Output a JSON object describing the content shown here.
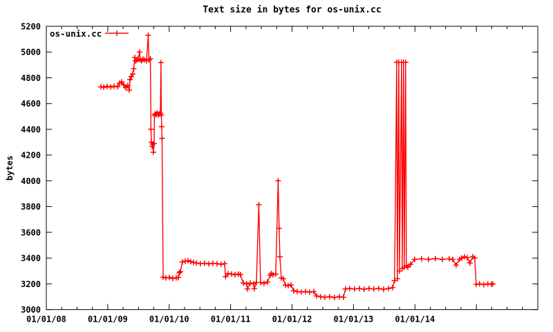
{
  "chart_data": {
    "type": "line",
    "title": "Text size in bytes for os-unix.cc",
    "xlabel": "",
    "ylabel": "bytes",
    "grid": false,
    "legend_position": "top-left-inside",
    "background_color": "#ffffff",
    "axis_color": "#000000",
    "x_axis": {
      "range_years": [
        2008,
        2016
      ],
      "tick_labels": [
        "01/01/08",
        "01/01/09",
        "01/01/10",
        "01/01/11",
        "01/01/12",
        "01/01/13",
        "01/01/14"
      ],
      "minor_ticks_per_year": 4
    },
    "y_axis": {
      "range": [
        3000,
        5200
      ],
      "tick_step": 200,
      "tick_values": [
        3000,
        3200,
        3400,
        3600,
        3800,
        4000,
        4200,
        4400,
        4600,
        4800,
        5000,
        5200
      ]
    },
    "series": [
      {
        "name": "os-unix.cc",
        "color": "#ff0000",
        "marker": "plus",
        "style": "linespoints",
        "points": [
          [
            2008.889,
            4730
          ],
          [
            2008.934,
            4727
          ],
          [
            2008.99,
            4733
          ],
          [
            2009.046,
            4728
          ],
          [
            2009.102,
            4735
          ],
          [
            2009.159,
            4730
          ],
          [
            2009.192,
            4758
          ],
          [
            2009.226,
            4768
          ],
          [
            2009.26,
            4745
          ],
          [
            2009.294,
            4722
          ],
          [
            2009.327,
            4740
          ],
          [
            2009.35,
            4705
          ],
          [
            2009.361,
            4785
          ],
          [
            2009.384,
            4810
          ],
          [
            2009.406,
            4830
          ],
          [
            2009.423,
            4870
          ],
          [
            2009.44,
            4958
          ],
          [
            2009.451,
            4930
          ],
          [
            2009.473,
            4940
          ],
          [
            2009.496,
            4945
          ],
          [
            2009.518,
            5000
          ],
          [
            2009.529,
            4938
          ],
          [
            2009.552,
            4933
          ],
          [
            2009.574,
            4945
          ],
          [
            2009.597,
            4938
          ],
          [
            2009.631,
            4933
          ],
          [
            2009.659,
            5130
          ],
          [
            2009.671,
            4938
          ],
          [
            2009.693,
            4948
          ],
          [
            2009.704,
            4400
          ],
          [
            2009.71,
            4300
          ],
          [
            2009.721,
            4268
          ],
          [
            2009.732,
            4285
          ],
          [
            2009.743,
            4222
          ],
          [
            2009.754,
            4290
          ],
          [
            2009.76,
            4508
          ],
          [
            2009.771,
            4520
          ],
          [
            2009.788,
            4515
          ],
          [
            2009.805,
            4528
          ],
          [
            2009.822,
            4512
          ],
          [
            2009.839,
            4520
          ],
          [
            2009.856,
            4525
          ],
          [
            2009.867,
            4918
          ],
          [
            2009.872,
            4510
          ],
          [
            2009.878,
            4420
          ],
          [
            2009.884,
            4330
          ],
          [
            2009.901,
            3252
          ],
          [
            2009.946,
            3246
          ],
          [
            2010.002,
            3250
          ],
          [
            2010.058,
            3242
          ],
          [
            2010.115,
            3246
          ],
          [
            2010.148,
            3250
          ],
          [
            2010.165,
            3286
          ],
          [
            2010.182,
            3295
          ],
          [
            2010.216,
            3370
          ],
          [
            2010.261,
            3376
          ],
          [
            2010.306,
            3380
          ],
          [
            2010.351,
            3372
          ],
          [
            2010.396,
            3366
          ],
          [
            2010.441,
            3362
          ],
          [
            2010.508,
            3356
          ],
          [
            2010.576,
            3360
          ],
          [
            2010.643,
            3355
          ],
          [
            2010.711,
            3360
          ],
          [
            2010.778,
            3356
          ],
          [
            2010.846,
            3352
          ],
          [
            2010.902,
            3356
          ],
          [
            2010.918,
            3256
          ],
          [
            2010.958,
            3280
          ],
          [
            2011.014,
            3276
          ],
          [
            2011.071,
            3270
          ],
          [
            2011.127,
            3276
          ],
          [
            2011.161,
            3272
          ],
          [
            2011.206,
            3206
          ],
          [
            2011.262,
            3200
          ],
          [
            2011.273,
            3160
          ],
          [
            2011.318,
            3206
          ],
          [
            2011.374,
            3200
          ],
          [
            2011.385,
            3162
          ],
          [
            2011.419,
            3210
          ],
          [
            2011.459,
            3815
          ],
          [
            2011.487,
            3210
          ],
          [
            2011.543,
            3204
          ],
          [
            2011.599,
            3214
          ],
          [
            2011.645,
            3268
          ],
          [
            2011.662,
            3280
          ],
          [
            2011.69,
            3270
          ],
          [
            2011.735,
            3276
          ],
          [
            2011.774,
            4000
          ],
          [
            2011.79,
            3630
          ],
          [
            2011.802,
            3410
          ],
          [
            2011.825,
            3246
          ],
          [
            2011.858,
            3240
          ],
          [
            2011.892,
            3190
          ],
          [
            2011.937,
            3186
          ],
          [
            2011.982,
            3192
          ],
          [
            2012.027,
            3146
          ],
          [
            2012.083,
            3140
          ],
          [
            2012.151,
            3136
          ],
          [
            2012.218,
            3140
          ],
          [
            2012.285,
            3135
          ],
          [
            2012.353,
            3140
          ],
          [
            2012.398,
            3106
          ],
          [
            2012.465,
            3100
          ],
          [
            2012.533,
            3096
          ],
          [
            2012.611,
            3100
          ],
          [
            2012.69,
            3094
          ],
          [
            2012.769,
            3100
          ],
          [
            2012.836,
            3096
          ],
          [
            2012.87,
            3160
          ],
          [
            2012.938,
            3164
          ],
          [
            2013.016,
            3160
          ],
          [
            2013.095,
            3164
          ],
          [
            2013.174,
            3158
          ],
          [
            2013.252,
            3164
          ],
          [
            2013.331,
            3160
          ],
          [
            2013.41,
            3164
          ],
          [
            2013.489,
            3158
          ],
          [
            2013.568,
            3164
          ],
          [
            2013.635,
            3170
          ],
          [
            2013.669,
            3225
          ],
          [
            2013.703,
            4920
          ],
          [
            2013.714,
            3240
          ],
          [
            2013.737,
            4920
          ],
          [
            2013.748,
            3300
          ],
          [
            2013.782,
            4920
          ],
          [
            2013.793,
            3318
          ],
          [
            2013.815,
            4920
          ],
          [
            2013.826,
            3330
          ],
          [
            2013.849,
            4920
          ],
          [
            2013.86,
            3340
          ],
          [
            2013.883,
            3330
          ],
          [
            2013.928,
            3352
          ],
          [
            2013.995,
            3390
          ],
          [
            2014.108,
            3394
          ],
          [
            2014.22,
            3390
          ],
          [
            2014.333,
            3396
          ],
          [
            2014.445,
            3390
          ],
          [
            2014.558,
            3394
          ],
          [
            2014.614,
            3390
          ],
          [
            2014.67,
            3345
          ],
          [
            2014.726,
            3390
          ],
          [
            2014.76,
            3400
          ],
          [
            2014.805,
            3410
          ],
          [
            2014.85,
            3404
          ],
          [
            2014.895,
            3362
          ],
          [
            2014.94,
            3410
          ],
          [
            2014.974,
            3400
          ],
          [
            2014.996,
            3196
          ],
          [
            2015.052,
            3200
          ],
          [
            2015.12,
            3194
          ],
          [
            2015.187,
            3200
          ],
          [
            2015.244,
            3196
          ],
          [
            2015.266,
            3200
          ]
        ]
      }
    ]
  }
}
